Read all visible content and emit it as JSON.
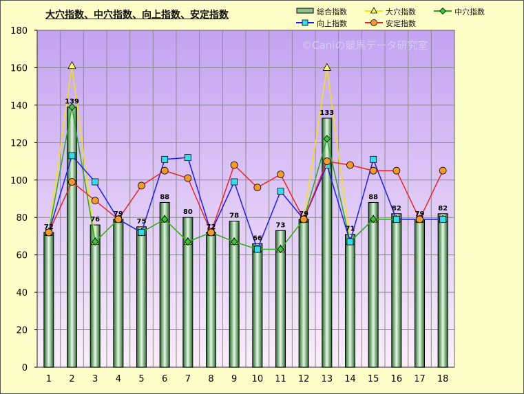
{
  "chart_data": {
    "type": "bar",
    "title": "大穴指数、中穴指数、向上指数、安定指数",
    "watermark": "©Caniの競馬データ研究室",
    "categories": [
      "1",
      "2",
      "3",
      "4",
      "5",
      "6",
      "7",
      "8",
      "9",
      "10",
      "11",
      "12",
      "13",
      "14",
      "15",
      "16",
      "17",
      "18"
    ],
    "ylim": [
      0,
      180
    ],
    "yticks": [
      0,
      20,
      40,
      60,
      80,
      100,
      120,
      140,
      160,
      180
    ],
    "grid": true,
    "legend_position": "top-right",
    "plot_background": "#c8a8f0",
    "series": [
      {
        "name": "総合指数",
        "type": "bar",
        "color": "#2e7d32",
        "values": [
          72,
          139,
          76,
          79,
          75,
          88,
          80,
          72,
          78,
          66,
          73,
          79,
          133,
          71,
          88,
          82,
          79,
          82
        ],
        "data_labels": [
          "72",
          "139",
          "76",
          "79",
          "75",
          "88",
          "80",
          "72",
          "78",
          "66",
          "73",
          "79",
          "133",
          "71",
          "88",
          "82",
          "79",
          "82"
        ]
      },
      {
        "name": "大穴指数",
        "type": "line",
        "color": "#f5e600",
        "marker": "triangle",
        "values": [
          72,
          161,
          67,
          79,
          72,
          79,
          67,
          72,
          67,
          63,
          63,
          79,
          160,
          67,
          79,
          79,
          79,
          79
        ]
      },
      {
        "name": "中穴指数",
        "type": "line",
        "color": "#22aa22",
        "marker": "diamond",
        "values": [
          72,
          139,
          67,
          79,
          72,
          79,
          67,
          72,
          67,
          63,
          63,
          79,
          122,
          67,
          79,
          79,
          79,
          79
        ]
      },
      {
        "name": "向上指数",
        "type": "line",
        "color": "#1a1aff",
        "marker": "square",
        "values": [
          72,
          113,
          99,
          79,
          72,
          111,
          112,
          72,
          99,
          63,
          94,
          79,
          108,
          67,
          111,
          79,
          79,
          79
        ]
      },
      {
        "name": "安定指数",
        "type": "line",
        "color": "#ee2222",
        "marker": "circle",
        "values": [
          72,
          99,
          89,
          79,
          97,
          105,
          101,
          72,
          108,
          96,
          103,
          79,
          110,
          108,
          105,
          105,
          79,
          105
        ]
      }
    ]
  }
}
